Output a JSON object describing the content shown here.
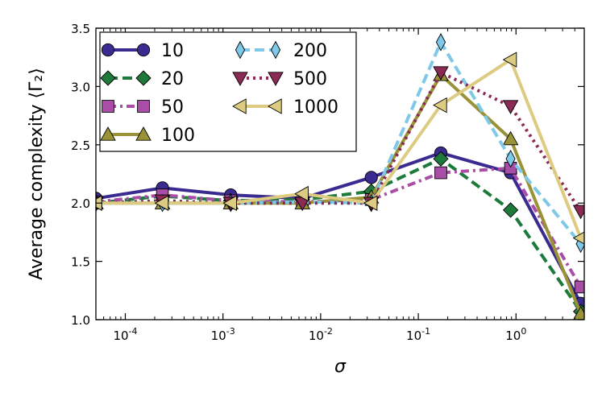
{
  "chart_data": {
    "type": "line",
    "title": "",
    "xlabel": "σ",
    "ylabel": "Average complexity ⟨Γ₂⟩",
    "xscale": "log",
    "xlim": [
      5e-05,
      5
    ],
    "ylim": [
      1.0,
      3.5
    ],
    "grid": false,
    "legend_position": "top-left",
    "x": [
      5e-05,
      0.00024,
      0.0012,
      0.0065,
      0.033,
      0.17,
      0.88,
      4.6
    ],
    "x_ticks": [
      {
        "value": 0.0001,
        "base": "10",
        "exp": "-4"
      },
      {
        "value": 0.001,
        "base": "10",
        "exp": "-3"
      },
      {
        "value": 0.01,
        "base": "10",
        "exp": "-2"
      },
      {
        "value": 0.1,
        "base": "10",
        "exp": "-1"
      },
      {
        "value": 1,
        "base": "10",
        "exp": "0"
      }
    ],
    "y_ticks": [
      {
        "value": 1.0,
        "label": "1.0"
      },
      {
        "value": 1.5,
        "label": "1.5"
      },
      {
        "value": 2.0,
        "label": "2.0"
      },
      {
        "value": 2.5,
        "label": "2.5"
      },
      {
        "value": 3.0,
        "label": "3.0"
      },
      {
        "value": 3.5,
        "label": "3.5"
      }
    ],
    "series": [
      {
        "name": "10",
        "color": "#3b2a8f",
        "marker": "circle",
        "dash": "solid",
        "values": [
          2.04,
          2.13,
          2.07,
          2.04,
          2.22,
          2.43,
          2.26,
          1.14
        ]
      },
      {
        "name": "20",
        "color": "#1d7a3a",
        "marker": "diamond",
        "dash": "dashed",
        "values": [
          2.0,
          2.06,
          2.02,
          2.03,
          2.1,
          2.38,
          1.94,
          1.07
        ]
      },
      {
        "name": "50",
        "color": "#a84ea6",
        "marker": "square",
        "dash": "dashdot",
        "values": [
          2.01,
          2.07,
          2.02,
          2.01,
          2.03,
          2.26,
          2.3,
          1.28
        ]
      },
      {
        "name": "100",
        "color": "#9a9236",
        "marker": "triangle-up",
        "dash": "solid",
        "values": [
          2.0,
          2.0,
          2.0,
          2.0,
          2.05,
          3.1,
          2.55,
          1.05
        ]
      },
      {
        "name": "200",
        "color": "#7fc8e8",
        "marker": "thin-diamond",
        "dash": "dashed",
        "values": [
          2.0,
          2.0,
          2.0,
          2.01,
          2.0,
          3.38,
          2.38,
          1.65
        ]
      },
      {
        "name": "500",
        "color": "#8a2a55",
        "marker": "triangle-down",
        "dash": "dotted",
        "values": [
          2.0,
          2.02,
          2.0,
          2.0,
          2.0,
          3.12,
          2.83,
          1.93
        ]
      },
      {
        "name": "1000",
        "color": "#dccb80",
        "marker": "triangle-left",
        "dash": "solid",
        "values": [
          2.0,
          2.0,
          2.0,
          2.08,
          2.0,
          2.84,
          3.23,
          1.7
        ]
      }
    ]
  }
}
